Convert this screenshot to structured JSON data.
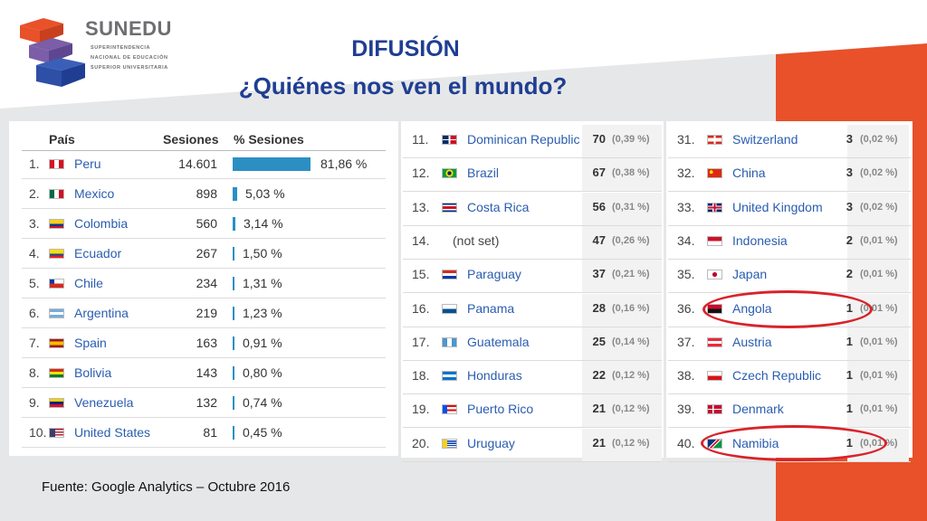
{
  "header": {
    "logo_name": "SUNEDU",
    "logo_lines": [
      "SUPERINTENDENCIA",
      "NACIONAL DE EDUCACIÓN",
      "SUPERIOR UNIVERSITARIA"
    ],
    "title": "DIFUSIÓN",
    "subtitle": "¿Quiénes nos ven el mundo?"
  },
  "table1": {
    "columns": [
      "País",
      "Sesiones",
      "% Sesiones"
    ],
    "rows": [
      {
        "idx": "1.",
        "country": "Peru",
        "sessions": "14.601",
        "pct": "81,86 %",
        "share": 81.86
      },
      {
        "idx": "2.",
        "country": "Mexico",
        "sessions": "898",
        "pct": "5,03 %",
        "share": 5.03
      },
      {
        "idx": "3.",
        "country": "Colombia",
        "sessions": "560",
        "pct": "3,14 %",
        "share": 3.14
      },
      {
        "idx": "4.",
        "country": "Ecuador",
        "sessions": "267",
        "pct": "1,50 %",
        "share": 1.5
      },
      {
        "idx": "5.",
        "country": "Chile",
        "sessions": "234",
        "pct": "1,31 %",
        "share": 1.31
      },
      {
        "idx": "6.",
        "country": "Argentina",
        "sessions": "219",
        "pct": "1,23 %",
        "share": 1.23
      },
      {
        "idx": "7.",
        "country": "Spain",
        "sessions": "163",
        "pct": "0,91 %",
        "share": 0.91
      },
      {
        "idx": "8.",
        "country": "Bolivia",
        "sessions": "143",
        "pct": "0,80 %",
        "share": 0.8
      },
      {
        "idx": "9.",
        "country": "Venezuela",
        "sessions": "132",
        "pct": "0,74 %",
        "share": 0.74
      },
      {
        "idx": "10.",
        "country": "United States",
        "sessions": "81",
        "pct": "0,45 %",
        "share": 0.45
      }
    ]
  },
  "table2": {
    "rows": [
      {
        "idx": "11.",
        "country": "Dominican Republic",
        "sessions": "70",
        "pct": "(0,39 %)"
      },
      {
        "idx": "12.",
        "country": "Brazil",
        "sessions": "67",
        "pct": "(0,38 %)"
      },
      {
        "idx": "13.",
        "country": "Costa Rica",
        "sessions": "56",
        "pct": "(0,31 %)"
      },
      {
        "idx": "14.",
        "country": "(not set)",
        "sessions": "47",
        "pct": "(0,26 %)"
      },
      {
        "idx": "15.",
        "country": "Paraguay",
        "sessions": "37",
        "pct": "(0,21 %)"
      },
      {
        "idx": "16.",
        "country": "Panama",
        "sessions": "28",
        "pct": "(0,16 %)"
      },
      {
        "idx": "17.",
        "country": "Guatemala",
        "sessions": "25",
        "pct": "(0,14 %)"
      },
      {
        "idx": "18.",
        "country": "Honduras",
        "sessions": "22",
        "pct": "(0,12 %)"
      },
      {
        "idx": "19.",
        "country": "Puerto Rico",
        "sessions": "21",
        "pct": "(0,12 %)"
      },
      {
        "idx": "20.",
        "country": "Uruguay",
        "sessions": "21",
        "pct": "(0,12 %)"
      }
    ]
  },
  "table3": {
    "rows": [
      {
        "idx": "31.",
        "country": "Switzerland",
        "sessions": "3",
        "pct": "(0,02 %)"
      },
      {
        "idx": "32.",
        "country": "China",
        "sessions": "3",
        "pct": "(0,02 %)"
      },
      {
        "idx": "33.",
        "country": "United Kingdom",
        "sessions": "3",
        "pct": "(0,02 %)"
      },
      {
        "idx": "34.",
        "country": "Indonesia",
        "sessions": "2",
        "pct": "(0,01 %)"
      },
      {
        "idx": "35.",
        "country": "Japan",
        "sessions": "2",
        "pct": "(0,01 %)"
      },
      {
        "idx": "36.",
        "country": "Angola",
        "sessions": "1",
        "pct": "(0,01 %)"
      },
      {
        "idx": "37.",
        "country": "Austria",
        "sessions": "1",
        "pct": "(0,01 %)"
      },
      {
        "idx": "38.",
        "country": "Czech Republic",
        "sessions": "1",
        "pct": "(0,01 %)"
      },
      {
        "idx": "39.",
        "country": "Denmark",
        "sessions": "1",
        "pct": "(0,01 %)"
      },
      {
        "idx": "40.",
        "country": "Namibia",
        "sessions": "1",
        "pct": "(0,01 %)"
      }
    ]
  },
  "source": "Fuente: Google Analytics – Octubre 2016",
  "colors": {
    "title": "#1f3e93",
    "accent_orange": "#e8512a",
    "bar": "#2b8fc4",
    "highlight_circle": "#d8232a"
  }
}
